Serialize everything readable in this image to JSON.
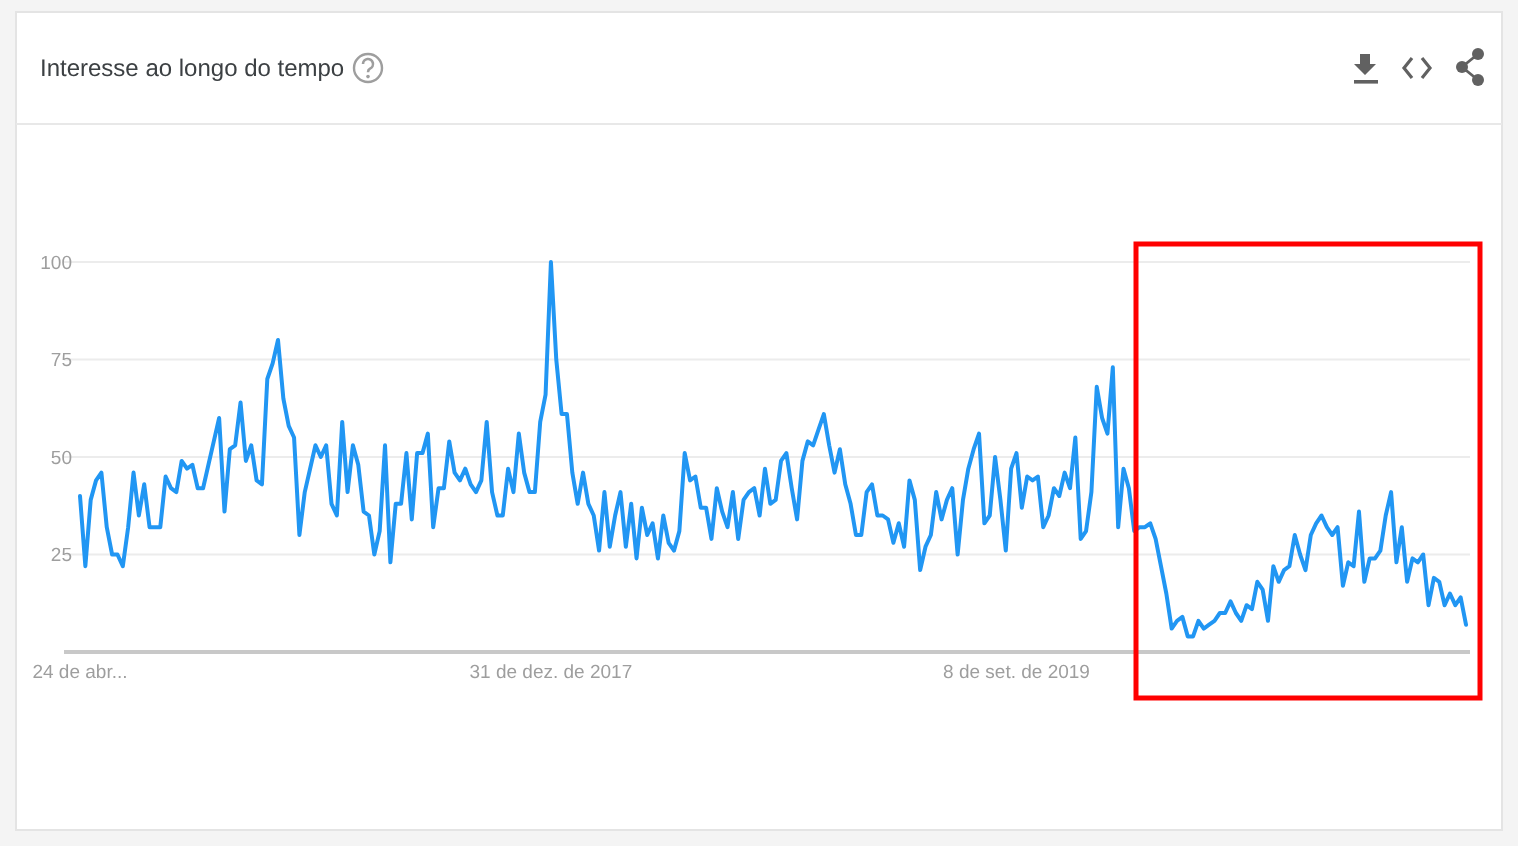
{
  "chart_data": {
    "type": "line",
    "title": "Interesse ao longo do tempo",
    "color": "#2196f3",
    "grid": "y",
    "line_style": "solid",
    "ylim": [
      0,
      100
    ],
    "yticks": [
      {
        "value": 0,
        "label": null
      },
      25,
      50,
      75,
      100
    ],
    "categories": [
      "24 de abr...",
      null,
      null,
      null,
      null,
      null,
      null,
      null,
      null,
      null,
      null,
      null,
      null,
      null,
      null,
      null,
      null,
      null,
      null,
      null,
      null,
      null,
      null,
      null,
      null,
      null,
      null,
      null,
      null,
      null,
      null,
      null,
      null,
      null,
      null,
      null,
      null,
      null,
      null,
      null,
      null,
      null,
      null,
      null,
      null,
      null,
      null,
      null,
      null,
      null,
      null,
      null,
      null,
      null,
      null,
      null,
      null,
      null,
      null,
      null,
      null,
      null,
      null,
      null,
      null,
      null,
      null,
      null,
      null,
      null,
      null,
      null,
      null,
      null,
      null,
      null,
      null,
      null,
      null,
      null,
      null,
      null,
      null,
      null,
      null,
      null,
      null,
      null,
      "31 de dez. de 2017",
      null,
      null,
      null,
      null,
      null,
      null,
      null,
      null,
      null,
      null,
      null,
      null,
      null,
      null,
      null,
      null,
      null,
      null,
      null,
      null,
      null,
      null,
      null,
      null,
      null,
      null,
      null,
      null,
      null,
      null,
      null,
      null,
      null,
      null,
      null,
      null,
      null,
      null,
      null,
      null,
      null,
      null,
      null,
      null,
      null,
      null,
      null,
      null,
      null,
      null,
      null,
      null,
      null,
      null,
      null,
      null,
      null,
      null,
      null,
      null,
      null,
      null,
      null,
      null,
      null,
      null,
      null,
      null,
      null,
      null,
      null,
      null,
      null,
      null,
      null,
      null,
      null,
      null,
      null,
      null,
      null,
      null,
      null,
      null,
      null,
      null,
      "8 de set. de 2019",
      null,
      null,
      null,
      null,
      null,
      null,
      null,
      null,
      null,
      null,
      null,
      null,
      null,
      null,
      null,
      null,
      null,
      null,
      null,
      null,
      null,
      null,
      null,
      null,
      null,
      null,
      null,
      null,
      null,
      null,
      null,
      null,
      null,
      null,
      null,
      null,
      null,
      null,
      null,
      null,
      null,
      null,
      null,
      null,
      null,
      null,
      null,
      null,
      null,
      null,
      null,
      null,
      null,
      null,
      null,
      null,
      null,
      null,
      null,
      null,
      null,
      null,
      null,
      null,
      null,
      null,
      null,
      null,
      null,
      null,
      null,
      null,
      null,
      null,
      null,
      null,
      null,
      null,
      null,
      null,
      null,
      null,
      null,
      null
    ],
    "values": [
      40,
      22,
      39,
      44,
      46,
      32,
      25,
      25,
      22,
      32,
      46,
      35,
      43,
      32,
      32,
      32,
      45,
      42,
      41,
      49,
      47,
      48,
      42,
      42,
      48,
      54,
      60,
      36,
      52,
      53,
      64,
      49,
      53,
      44,
      43,
      70,
      74,
      80,
      65,
      58,
      55,
      30,
      41,
      47,
      53,
      50,
      53,
      38,
      35,
      59,
      41,
      53,
      48,
      36,
      35,
      25,
      31,
      53,
      23,
      38,
      38,
      51,
      34,
      51,
      51,
      56,
      32,
      42,
      42,
      54,
      46,
      44,
      47,
      43,
      41,
      44,
      59,
      41,
      35,
      35,
      47,
      41,
      56,
      46,
      41,
      41,
      59,
      66,
      100,
      75,
      61,
      61,
      46,
      38,
      46,
      38,
      35,
      26,
      41,
      27,
      35,
      41,
      27,
      38,
      24,
      37,
      30,
      33,
      24,
      35,
      28,
      26,
      31,
      51,
      44,
      45,
      37,
      37,
      29,
      42,
      36,
      32,
      41,
      29,
      39,
      41,
      42,
      35,
      47,
      38,
      39,
      49,
      51,
      42,
      34,
      49,
      54,
      53,
      57,
      61,
      53,
      46,
      52,
      43,
      38,
      30,
      30,
      41,
      43,
      35,
      35,
      34,
      28,
      33,
      27,
      44,
      39,
      21,
      27,
      30,
      41,
      34,
      39,
      42,
      25,
      39,
      47,
      52,
      56,
      33,
      35,
      50,
      39,
      26,
      47,
      51,
      37,
      45,
      44,
      45,
      32,
      35,
      42,
      40,
      46,
      42,
      55,
      29,
      31,
      41,
      68,
      60,
      56,
      73,
      32,
      47,
      42,
      31,
      32,
      32,
      33,
      29,
      22,
      15,
      6,
      8,
      9,
      4,
      4,
      8,
      6,
      7,
      8,
      10,
      10,
      13,
      10,
      8,
      12,
      11,
      18,
      16,
      8,
      22,
      18,
      21,
      22,
      30,
      25,
      21,
      30,
      33,
      35,
      32,
      30,
      32,
      17,
      23,
      22,
      36,
      18,
      24,
      24,
      26,
      35,
      41,
      23,
      32,
      18,
      24,
      23,
      25,
      12,
      19,
      18,
      12,
      15,
      12,
      14,
      7
    ]
  }
}
